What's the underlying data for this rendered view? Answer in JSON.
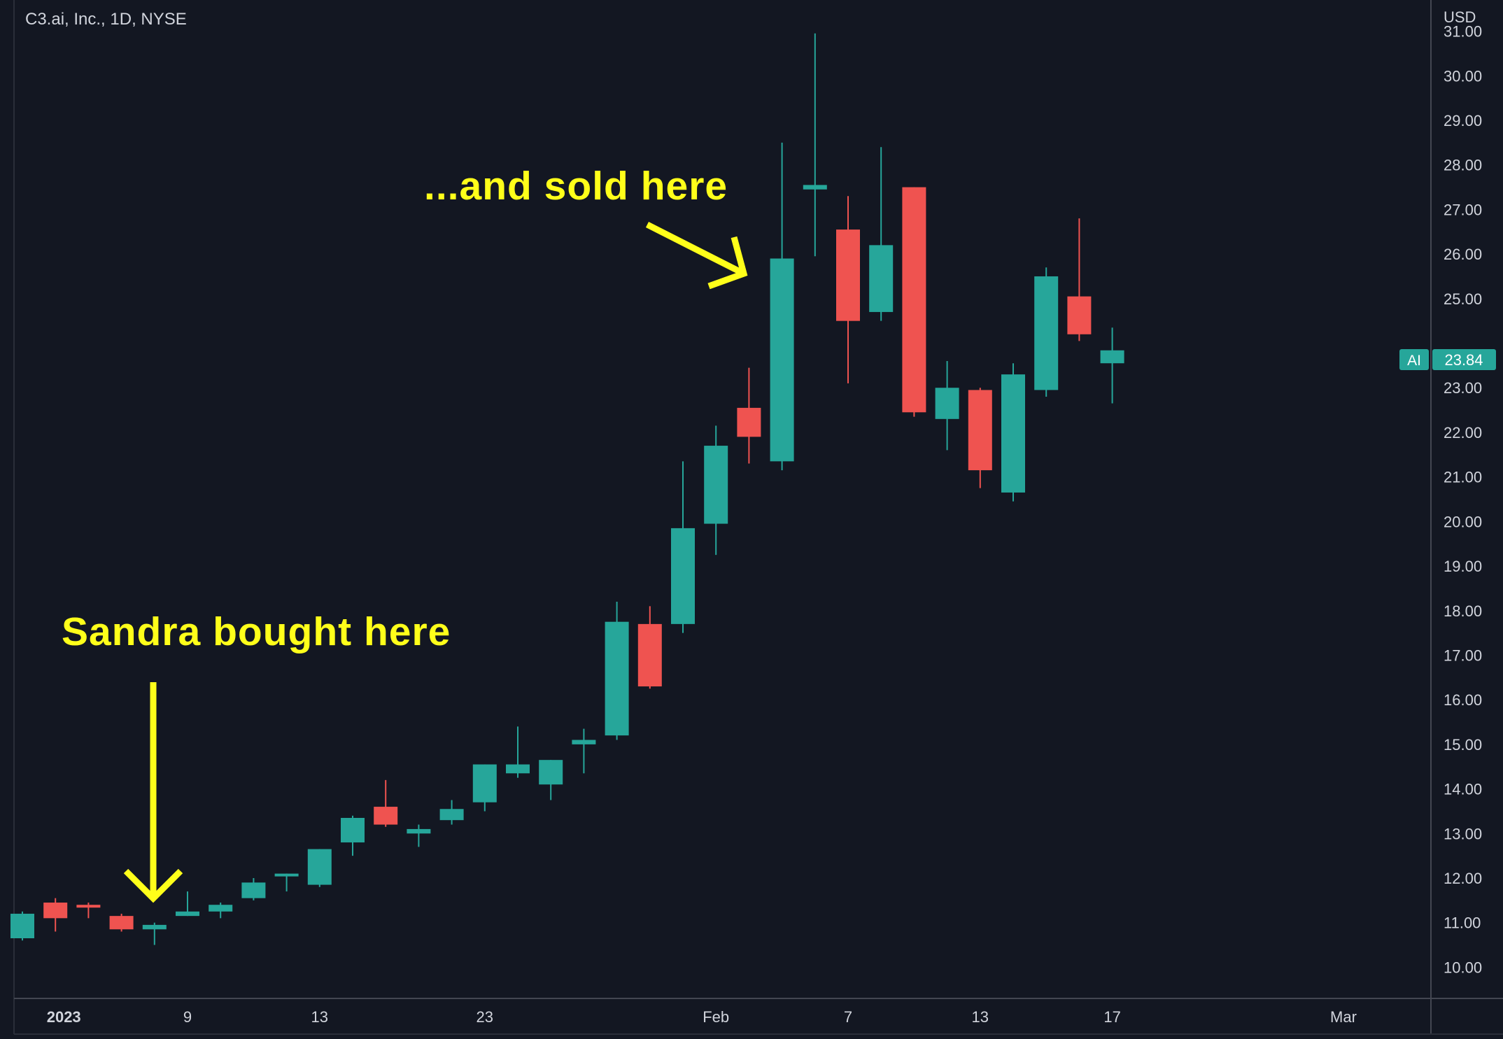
{
  "header": {
    "symbol_title": "C3.ai, Inc., 1D, NYSE",
    "currency": "USD"
  },
  "annotations": {
    "bought": "Sandra bought here",
    "sold": "...and sold here"
  },
  "price_label": {
    "ticker": "AI",
    "value": "23.84"
  },
  "colors": {
    "background": "#131722",
    "up": "#26a69a",
    "down": "#ef5350",
    "annotation": "#ffff1a",
    "axis_line": "#434651",
    "text": "#d1d4dc"
  },
  "chart_data": {
    "type": "candlestick",
    "ylim": [
      9.3,
      31.7
    ],
    "y_ticks": [
      "10.00",
      "11.00",
      "12.00",
      "13.00",
      "14.00",
      "15.00",
      "16.00",
      "17.00",
      "18.00",
      "19.00",
      "20.00",
      "21.00",
      "22.00",
      "23.00",
      "25.00",
      "26.00",
      "27.00",
      "28.00",
      "29.00",
      "30.00",
      "31.00"
    ],
    "x_ticks": [
      {
        "label": "2023",
        "bar_index": 1,
        "bold": true
      },
      {
        "label": "9",
        "bar_index": 5
      },
      {
        "label": "13",
        "bar_index": 9
      },
      {
        "label": "23",
        "bar_index": 14
      },
      {
        "label": "Feb",
        "bar_index": 21
      },
      {
        "label": "7",
        "bar_index": 25
      },
      {
        "label": "13",
        "bar_index": 29
      },
      {
        "label": "17",
        "bar_index": 33
      },
      {
        "label": "Mar",
        "bar_index": 40
      }
    ],
    "candles": [
      {
        "o": 10.65,
        "h": 11.25,
        "l": 10.6,
        "c": 11.2
      },
      {
        "o": 11.45,
        "h": 11.55,
        "l": 10.8,
        "c": 11.1
      },
      {
        "o": 11.4,
        "h": 11.45,
        "l": 11.1,
        "c": 11.38
      },
      {
        "o": 11.15,
        "h": 11.2,
        "l": 10.8,
        "c": 10.85
      },
      {
        "o": 10.85,
        "h": 11.0,
        "l": 10.5,
        "c": 10.95
      },
      {
        "o": 11.15,
        "h": 11.7,
        "l": 11.15,
        "c": 11.25
      },
      {
        "o": 11.25,
        "h": 11.45,
        "l": 11.1,
        "c": 11.4
      },
      {
        "o": 11.55,
        "h": 12.0,
        "l": 11.5,
        "c": 11.9
      },
      {
        "o": 12.05,
        "h": 12.1,
        "l": 11.7,
        "c": 12.1
      },
      {
        "o": 11.85,
        "h": 12.65,
        "l": 11.8,
        "c": 12.65
      },
      {
        "o": 12.8,
        "h": 13.4,
        "l": 12.5,
        "c": 13.35
      },
      {
        "o": 13.6,
        "h": 14.2,
        "l": 13.15,
        "c": 13.2
      },
      {
        "o": 13.0,
        "h": 13.2,
        "l": 12.7,
        "c": 13.1
      },
      {
        "o": 13.3,
        "h": 13.75,
        "l": 13.2,
        "c": 13.55
      },
      {
        "o": 13.7,
        "h": 14.55,
        "l": 13.5,
        "c": 14.55
      },
      {
        "o": 14.35,
        "h": 15.4,
        "l": 14.25,
        "c": 14.55
      },
      {
        "o": 14.1,
        "h": 14.65,
        "l": 13.75,
        "c": 14.65
      },
      {
        "o": 15.0,
        "h": 15.35,
        "l": 14.35,
        "c": 15.1
      },
      {
        "o": 15.2,
        "h": 18.2,
        "l": 15.1,
        "c": 17.75
      },
      {
        "o": 17.7,
        "h": 18.1,
        "l": 16.25,
        "c": 16.3
      },
      {
        "o": 17.7,
        "h": 21.35,
        "l": 17.5,
        "c": 19.85
      },
      {
        "o": 19.95,
        "h": 22.15,
        "l": 19.25,
        "c": 21.7
      },
      {
        "o": 22.55,
        "h": 23.45,
        "l": 21.3,
        "c": 21.9
      },
      {
        "o": 21.35,
        "h": 28.5,
        "l": 21.15,
        "c": 25.9
      },
      {
        "o": 27.45,
        "h": 30.95,
        "l": 25.95,
        "c": 27.55
      },
      {
        "o": 26.55,
        "h": 27.3,
        "l": 23.1,
        "c": 24.5
      },
      {
        "o": 24.7,
        "h": 28.4,
        "l": 24.5,
        "c": 26.2
      },
      {
        "o": 27.5,
        "h": 27.5,
        "l": 22.35,
        "c": 22.45
      },
      {
        "o": 22.3,
        "h": 23.6,
        "l": 21.6,
        "c": 23.0
      },
      {
        "o": 22.95,
        "h": 23.0,
        "l": 20.75,
        "c": 21.15
      },
      {
        "o": 20.65,
        "h": 23.55,
        "l": 20.45,
        "c": 23.3
      },
      {
        "o": 22.95,
        "h": 25.7,
        "l": 22.8,
        "c": 25.5
      },
      {
        "o": 25.05,
        "h": 26.8,
        "l": 24.05,
        "c": 24.2
      },
      {
        "o": 23.55,
        "h": 24.35,
        "l": 22.65,
        "c": 23.84
      }
    ]
  }
}
